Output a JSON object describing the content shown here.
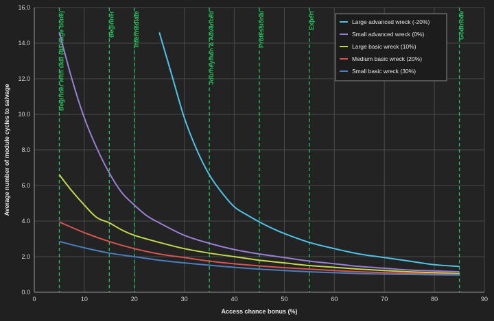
{
  "chart_data": {
    "type": "line",
    "title": "",
    "xlabel": "Access chance bonus (%)",
    "ylabel": "Average number of module cycles to salvage",
    "xlim": [
      0,
      90
    ],
    "ylim": [
      0,
      16
    ],
    "xticks": [
      0,
      10,
      20,
      30,
      40,
      50,
      60,
      70,
      80,
      90
    ],
    "xtick_labels": [
      "0",
      "10",
      "20",
      "30",
      "40",
      "50",
      "60",
      "70",
      "80",
      "90"
    ],
    "yticks": [
      0,
      2,
      4,
      6,
      8,
      10,
      12,
      14,
      16
    ],
    "ytick_labels": [
      "0.0",
      "2.0",
      "4.0",
      "6.0",
      "8.0",
      "10.0",
      "12.0",
      "14.0",
      "16.0"
    ],
    "grid": true,
    "legend_position": "top-right",
    "colors": {
      "background": "#202020",
      "plot_bg": "#232323",
      "grid": "#4a4a4a",
      "axis": "#9a9a9a",
      "skill_line": "#22c55e"
    },
    "skill_levels": [
      {
        "x": 5,
        "label": "Beginner with skill (damage done)"
      },
      {
        "x": 15,
        "label": "Beginner"
      },
      {
        "x": 20,
        "label": "Intermediate"
      },
      {
        "x": 35,
        "label": "Journeyman & Advanced"
      },
      {
        "x": 45,
        "label": "Professional"
      },
      {
        "x": 55,
        "label": "Expert"
      },
      {
        "x": 85,
        "label": "Godmode"
      }
    ],
    "series": [
      {
        "name": "Large advanced wreck (-20%)",
        "color": "#4fc3e8",
        "x": [
          25,
          27.5,
          30,
          32.5,
          35,
          37.5,
          40,
          42.5,
          45,
          47.5,
          50,
          55,
          60,
          65,
          70,
          75,
          80,
          85
        ],
        "y": [
          14.6,
          12.2,
          9.8,
          8.0,
          6.6,
          5.6,
          4.8,
          4.35,
          3.95,
          3.6,
          3.3,
          2.8,
          2.45,
          2.15,
          1.95,
          1.75,
          1.55,
          1.45
        ]
      },
      {
        "name": "Small advanced wreck (0%)",
        "color": "#9b7fd4",
        "x": [
          5,
          7.5,
          10,
          12.5,
          15,
          17.5,
          20,
          22.5,
          25,
          30,
          35,
          40,
          45,
          50,
          55,
          60,
          65,
          70,
          75,
          80,
          85
        ],
        "y": [
          14.6,
          12.0,
          9.8,
          8.1,
          6.7,
          5.6,
          4.9,
          4.3,
          3.9,
          3.2,
          2.75,
          2.4,
          2.15,
          1.95,
          1.75,
          1.6,
          1.45,
          1.35,
          1.25,
          1.2,
          1.15
        ]
      },
      {
        "name": "Large basic wreck (10%)",
        "color": "#c6d94a",
        "x": [
          5,
          7.5,
          10,
          12.5,
          15,
          17.5,
          20,
          25,
          30,
          35,
          40,
          45,
          50,
          55,
          60,
          65,
          70,
          75,
          80,
          85
        ],
        "y": [
          6.6,
          5.7,
          4.9,
          4.2,
          3.9,
          3.5,
          3.2,
          2.8,
          2.45,
          2.2,
          2.0,
          1.8,
          1.65,
          1.5,
          1.4,
          1.3,
          1.22,
          1.15,
          1.1,
          1.05
        ]
      },
      {
        "name": "Medium basic wreck (20%)",
        "color": "#d9534f",
        "x": [
          5,
          10,
          15,
          20,
          25,
          30,
          35,
          40,
          45,
          50,
          55,
          60,
          65,
          70,
          75,
          80,
          85
        ],
        "y": [
          3.95,
          3.35,
          2.85,
          2.45,
          2.15,
          1.95,
          1.75,
          1.6,
          1.48,
          1.38,
          1.3,
          1.22,
          1.15,
          1.1,
          1.06,
          1.03,
          1.0
        ]
      },
      {
        "name": "Small basic wreck (30%)",
        "color": "#4a7fc1",
        "x": [
          5,
          10,
          15,
          20,
          25,
          30,
          35,
          40,
          45,
          50,
          55,
          60,
          65,
          70,
          75,
          80,
          85
        ],
        "y": [
          2.85,
          2.5,
          2.2,
          2.0,
          1.8,
          1.65,
          1.52,
          1.4,
          1.3,
          1.22,
          1.15,
          1.1,
          1.05,
          1.02,
          1.0,
          0.98,
          0.97
        ]
      }
    ]
  }
}
